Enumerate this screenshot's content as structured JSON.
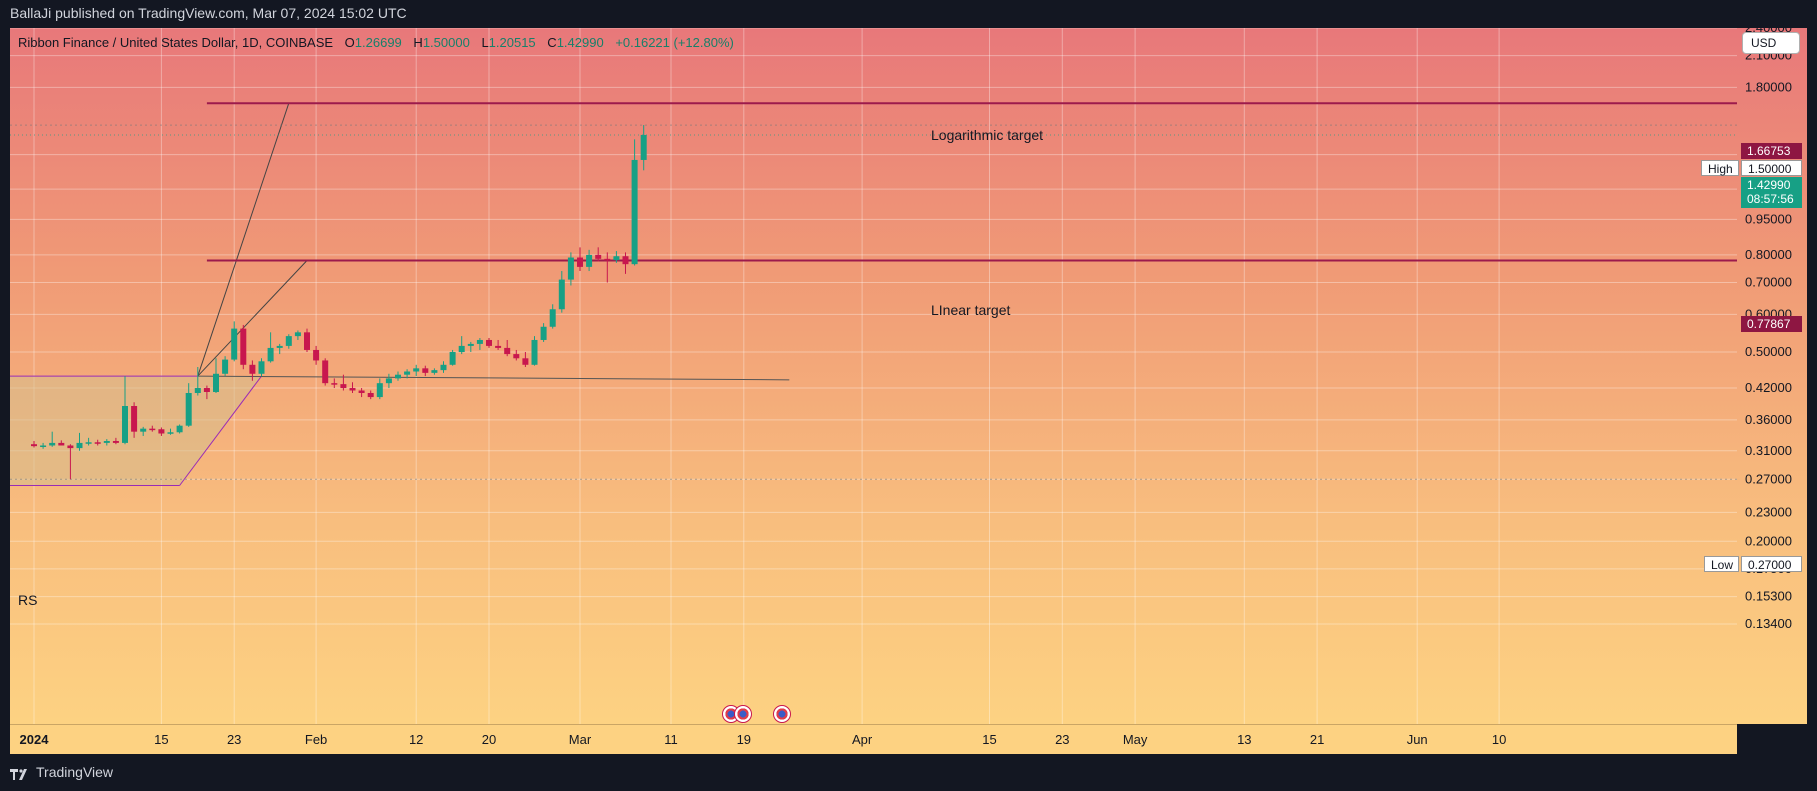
{
  "header": {
    "text": "BallaJi published on TradingView.com, Mar 07, 2024 15:02 UTC"
  },
  "legend": {
    "symbol": "Ribbon Finance / United States Dollar, 1D, COINBASE",
    "o_label": "O",
    "o_value": "1.26699",
    "h_label": "H",
    "h_value": "1.50000",
    "l_label": "L",
    "l_value": "1.20515",
    "c_label": "C",
    "c_value": "1.42990",
    "change": "+0.16221 (+12.80%)"
  },
  "currency_button": "USD",
  "indicator_label": "RS",
  "annotations": {
    "log_target_label": "Logarithmic target",
    "linear_target_label": "LInear target"
  },
  "price_tags": {
    "log_target": "1.66753",
    "high_label": "High",
    "high_value": "1.50000",
    "last_price": "1.42990",
    "countdown": "08:57:56",
    "linear_target": "0.77867",
    "low_label": "Low",
    "low_value": "0.27000"
  },
  "footer": {
    "brand": "TradingView"
  },
  "colors": {
    "up": "#17a085",
    "down": "#c8174e",
    "target_line": "#9c1a4c",
    "pattern_line": "#9a2bb6"
  },
  "chart_data": {
    "type": "candlestick",
    "title": "Ribbon Finance / United States Dollar, 1D, COINBASE",
    "y_scale": "log",
    "y_ticks": [
      "2.40000",
      "2.10000",
      "1.80000",
      "1.30000",
      "1.10000",
      "0.95000",
      "0.80000",
      "0.70000",
      "0.60000",
      "0.50000",
      "0.42000",
      "0.36000",
      "0.31000",
      "0.27000",
      "0.23000",
      "0.20000",
      "0.17500",
      "0.15300",
      "0.13400"
    ],
    "x_ticks": [
      "2024",
      "15",
      "23",
      "Feb",
      "12",
      "20",
      "Mar",
      "11",
      "19",
      "Apr",
      "15",
      "23",
      "May",
      "13",
      "21",
      "Jun",
      "10"
    ],
    "x_start": "2024-01-01",
    "candles": [
      {
        "date": "2024-01-01",
        "o": 0.32,
        "h": 0.325,
        "l": 0.315,
        "c": 0.317
      },
      {
        "date": "2024-01-02",
        "o": 0.317,
        "h": 0.322,
        "l": 0.313,
        "c": 0.318
      },
      {
        "date": "2024-01-03",
        "o": 0.318,
        "h": 0.34,
        "l": 0.316,
        "c": 0.322
      },
      {
        "date": "2024-01-04",
        "o": 0.322,
        "h": 0.326,
        "l": 0.318,
        "c": 0.318
      },
      {
        "date": "2024-01-05",
        "o": 0.318,
        "h": 0.32,
        "l": 0.27,
        "c": 0.314
      },
      {
        "date": "2024-01-06",
        "o": 0.314,
        "h": 0.338,
        "l": 0.31,
        "c": 0.322
      },
      {
        "date": "2024-01-07",
        "o": 0.322,
        "h": 0.33,
        "l": 0.318,
        "c": 0.323
      },
      {
        "date": "2024-01-08",
        "o": 0.323,
        "h": 0.327,
        "l": 0.318,
        "c": 0.322
      },
      {
        "date": "2024-01-09",
        "o": 0.322,
        "h": 0.328,
        "l": 0.318,
        "c": 0.325
      },
      {
        "date": "2024-01-10",
        "o": 0.325,
        "h": 0.33,
        "l": 0.32,
        "c": 0.322
      },
      {
        "date": "2024-01-11",
        "o": 0.322,
        "h": 0.445,
        "l": 0.32,
        "c": 0.385
      },
      {
        "date": "2024-01-12",
        "o": 0.385,
        "h": 0.392,
        "l": 0.33,
        "c": 0.34
      },
      {
        "date": "2024-01-13",
        "o": 0.34,
        "h": 0.348,
        "l": 0.333,
        "c": 0.345
      },
      {
        "date": "2024-01-14",
        "o": 0.345,
        "h": 0.35,
        "l": 0.34,
        "c": 0.344
      },
      {
        "date": "2024-01-15",
        "o": 0.344,
        "h": 0.347,
        "l": 0.333,
        "c": 0.337
      },
      {
        "date": "2024-01-16",
        "o": 0.337,
        "h": 0.345,
        "l": 0.335,
        "c": 0.339
      },
      {
        "date": "2024-01-17",
        "o": 0.339,
        "h": 0.352,
        "l": 0.337,
        "c": 0.35
      },
      {
        "date": "2024-01-18",
        "o": 0.35,
        "h": 0.43,
        "l": 0.348,
        "c": 0.41
      },
      {
        "date": "2024-01-19",
        "o": 0.41,
        "h": 0.465,
        "l": 0.405,
        "c": 0.42
      },
      {
        "date": "2024-01-20",
        "o": 0.42,
        "h": 0.425,
        "l": 0.398,
        "c": 0.412
      },
      {
        "date": "2024-01-21",
        "o": 0.412,
        "h": 0.485,
        "l": 0.41,
        "c": 0.45
      },
      {
        "date": "2024-01-22",
        "o": 0.45,
        "h": 0.49,
        "l": 0.445,
        "c": 0.482
      },
      {
        "date": "2024-01-23",
        "o": 0.482,
        "h": 0.58,
        "l": 0.478,
        "c": 0.56
      },
      {
        "date": "2024-01-24",
        "o": 0.56,
        "h": 0.57,
        "l": 0.46,
        "c": 0.47
      },
      {
        "date": "2024-01-25",
        "o": 0.47,
        "h": 0.48,
        "l": 0.435,
        "c": 0.45
      },
      {
        "date": "2024-01-26",
        "o": 0.45,
        "h": 0.485,
        "l": 0.445,
        "c": 0.478
      },
      {
        "date": "2024-01-27",
        "o": 0.478,
        "h": 0.55,
        "l": 0.475,
        "c": 0.51
      },
      {
        "date": "2024-01-28",
        "o": 0.51,
        "h": 0.52,
        "l": 0.495,
        "c": 0.515
      },
      {
        "date": "2024-01-29",
        "o": 0.515,
        "h": 0.545,
        "l": 0.508,
        "c": 0.54
      },
      {
        "date": "2024-01-30",
        "o": 0.54,
        "h": 0.555,
        "l": 0.53,
        "c": 0.55
      },
      {
        "date": "2024-01-31",
        "o": 0.55,
        "h": 0.56,
        "l": 0.5,
        "c": 0.505
      },
      {
        "date": "2024-02-01",
        "o": 0.505,
        "h": 0.515,
        "l": 0.47,
        "c": 0.48
      },
      {
        "date": "2024-02-02",
        "o": 0.48,
        "h": 0.485,
        "l": 0.425,
        "c": 0.43
      },
      {
        "date": "2024-02-03",
        "o": 0.43,
        "h": 0.44,
        "l": 0.42,
        "c": 0.428
      },
      {
        "date": "2024-02-04",
        "o": 0.428,
        "h": 0.448,
        "l": 0.415,
        "c": 0.42
      },
      {
        "date": "2024-02-05",
        "o": 0.42,
        "h": 0.432,
        "l": 0.41,
        "c": 0.415
      },
      {
        "date": "2024-02-06",
        "o": 0.415,
        "h": 0.42,
        "l": 0.402,
        "c": 0.41
      },
      {
        "date": "2024-02-07",
        "o": 0.41,
        "h": 0.415,
        "l": 0.398,
        "c": 0.402
      },
      {
        "date": "2024-02-08",
        "o": 0.402,
        "h": 0.44,
        "l": 0.398,
        "c": 0.43
      },
      {
        "date": "2024-02-09",
        "o": 0.43,
        "h": 0.45,
        "l": 0.42,
        "c": 0.44
      },
      {
        "date": "2024-02-10",
        "o": 0.44,
        "h": 0.455,
        "l": 0.435,
        "c": 0.448
      },
      {
        "date": "2024-02-11",
        "o": 0.448,
        "h": 0.46,
        "l": 0.44,
        "c": 0.455
      },
      {
        "date": "2024-02-12",
        "o": 0.455,
        "h": 0.47,
        "l": 0.445,
        "c": 0.462
      },
      {
        "date": "2024-02-13",
        "o": 0.462,
        "h": 0.468,
        "l": 0.445,
        "c": 0.452
      },
      {
        "date": "2024-02-14",
        "o": 0.452,
        "h": 0.462,
        "l": 0.448,
        "c": 0.458
      },
      {
        "date": "2024-02-15",
        "o": 0.458,
        "h": 0.478,
        "l": 0.452,
        "c": 0.47
      },
      {
        "date": "2024-02-16",
        "o": 0.47,
        "h": 0.505,
        "l": 0.468,
        "c": 0.5
      },
      {
        "date": "2024-02-17",
        "o": 0.5,
        "h": 0.54,
        "l": 0.495,
        "c": 0.515
      },
      {
        "date": "2024-02-18",
        "o": 0.515,
        "h": 0.525,
        "l": 0.5,
        "c": 0.52
      },
      {
        "date": "2024-02-19",
        "o": 0.52,
        "h": 0.535,
        "l": 0.505,
        "c": 0.53
      },
      {
        "date": "2024-02-20",
        "o": 0.53,
        "h": 0.535,
        "l": 0.51,
        "c": 0.515
      },
      {
        "date": "2024-02-21",
        "o": 0.515,
        "h": 0.53,
        "l": 0.505,
        "c": 0.51
      },
      {
        "date": "2024-02-22",
        "o": 0.51,
        "h": 0.53,
        "l": 0.49,
        "c": 0.495
      },
      {
        "date": "2024-02-23",
        "o": 0.495,
        "h": 0.505,
        "l": 0.48,
        "c": 0.485
      },
      {
        "date": "2024-02-24",
        "o": 0.485,
        "h": 0.5,
        "l": 0.465,
        "c": 0.47
      },
      {
        "date": "2024-02-25",
        "o": 0.47,
        "h": 0.54,
        "l": 0.468,
        "c": 0.53
      },
      {
        "date": "2024-02-26",
        "o": 0.53,
        "h": 0.575,
        "l": 0.525,
        "c": 0.565
      },
      {
        "date": "2024-02-27",
        "o": 0.565,
        "h": 0.63,
        "l": 0.56,
        "c": 0.615
      },
      {
        "date": "2024-02-28",
        "o": 0.615,
        "h": 0.74,
        "l": 0.605,
        "c": 0.71
      },
      {
        "date": "2024-02-29",
        "o": 0.71,
        "h": 0.81,
        "l": 0.69,
        "c": 0.79
      },
      {
        "date": "2024-03-01",
        "o": 0.79,
        "h": 0.83,
        "l": 0.74,
        "c": 0.755
      },
      {
        "date": "2024-03-02",
        "o": 0.755,
        "h": 0.82,
        "l": 0.74,
        "c": 0.8
      },
      {
        "date": "2024-03-03",
        "o": 0.8,
        "h": 0.83,
        "l": 0.775,
        "c": 0.785
      },
      {
        "date": "2024-03-04",
        "o": 0.785,
        "h": 0.81,
        "l": 0.7,
        "c": 0.78
      },
      {
        "date": "2024-03-05",
        "o": 0.78,
        "h": 0.815,
        "l": 0.77,
        "c": 0.795
      },
      {
        "date": "2024-03-06",
        "o": 0.795,
        "h": 0.81,
        "l": 0.73,
        "c": 0.765
      },
      {
        "date": "2024-03-07",
        "o": 0.765,
        "h": 1.4,
        "l": 0.76,
        "c": 1.267
      },
      {
        "date": "2024-03-08",
        "o": 1.267,
        "h": 1.5,
        "l": 1.205,
        "c": 1.43
      }
    ],
    "horizontal_levels": [
      {
        "name": "Logarithmic target",
        "price": 1.66753
      },
      {
        "name": "LInear target",
        "price": 0.77867
      },
      {
        "name": "High",
        "price": 1.5
      },
      {
        "name": "Low",
        "price": 0.27
      }
    ],
    "high": 1.5,
    "low": 0.27,
    "last": 1.4299,
    "grid": true
  }
}
